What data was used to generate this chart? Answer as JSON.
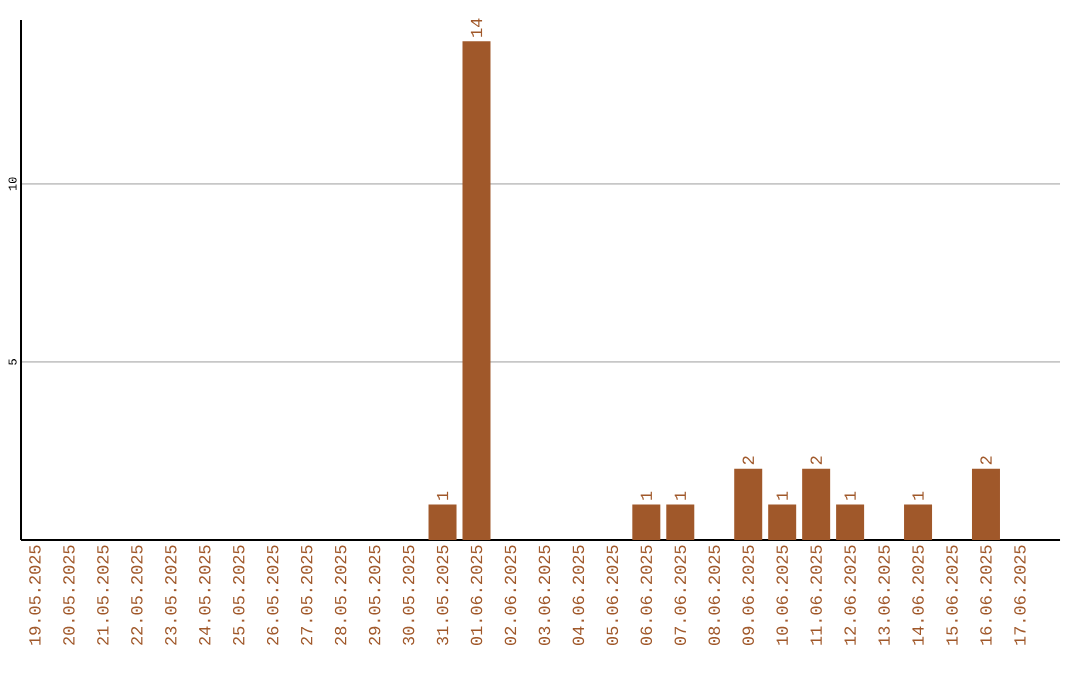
{
  "chart_data": {
    "type": "bar",
    "categories": [
      "19.05.2025",
      "20.05.2025",
      "21.05.2025",
      "22.05.2025",
      "23.05.2025",
      "24.05.2025",
      "25.05.2025",
      "26.05.2025",
      "27.05.2025",
      "28.05.2025",
      "29.05.2025",
      "30.05.2025",
      "31.05.2025",
      "01.06.2025",
      "02.06.2025",
      "03.06.2025",
      "04.06.2025",
      "05.06.2025",
      "06.06.2025",
      "07.06.2025",
      "08.06.2025",
      "09.06.2025",
      "10.06.2025",
      "11.06.2025",
      "12.06.2025",
      "13.06.2025",
      "14.06.2025",
      "15.06.2025",
      "16.06.2025",
      "17.06.2025"
    ],
    "values": [
      0,
      0,
      0,
      0,
      0,
      0,
      0,
      0,
      0,
      0,
      0,
      0,
      1,
      14,
      0,
      0,
      0,
      0,
      1,
      1,
      0,
      2,
      1,
      2,
      1,
      0,
      1,
      0,
      2,
      0
    ],
    "value_labels": [
      null,
      null,
      null,
      null,
      null,
      null,
      null,
      null,
      null,
      null,
      null,
      null,
      "1",
      "14",
      null,
      null,
      null,
      null,
      "1",
      "1",
      null,
      "2",
      "1",
      "2",
      "1",
      null,
      "1",
      null,
      "2",
      null
    ],
    "color": "#a0582a",
    "ylim": [
      0,
      14.6
    ],
    "yticks": [
      5,
      10
    ],
    "grid": "y"
  }
}
